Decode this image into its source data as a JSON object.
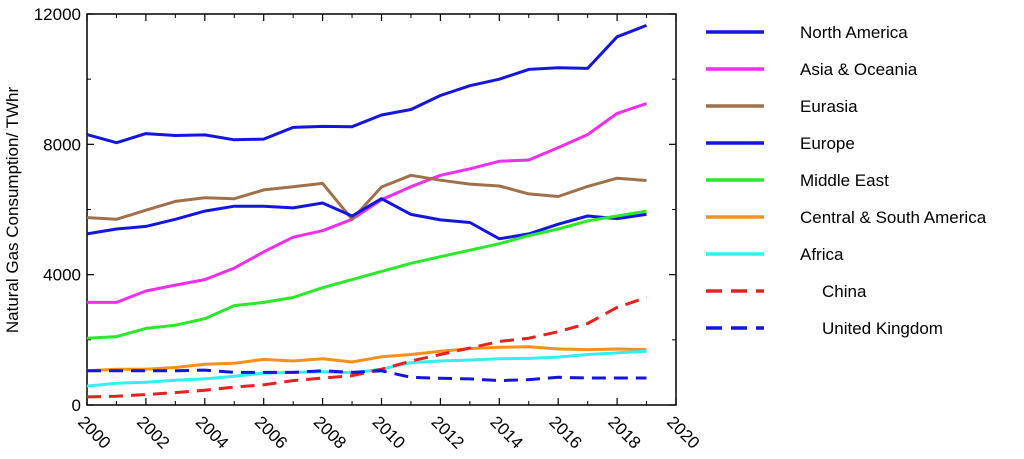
{
  "chart_data": {
    "type": "line",
    "title": "",
    "xlabel": "",
    "ylabel": "Natural Gas Consumption/ TWhr",
    "xlim": [
      2000,
      2020
    ],
    "ylim": [
      0,
      12000
    ],
    "x_ticks": [
      "2000",
      "2002",
      "2004",
      "2006",
      "2008",
      "2010",
      "2012",
      "2014",
      "2016",
      "2018",
      "2020"
    ],
    "y_ticks": [
      "0",
      "4000",
      "8000",
      "12000"
    ],
    "grid": false,
    "legend_position": "right",
    "x": [
      2000,
      2001,
      2002,
      2003,
      2004,
      2005,
      2006,
      2007,
      2008,
      2009,
      2010,
      2011,
      2012,
      2013,
      2014,
      2015,
      2016,
      2017,
      2018,
      2019
    ],
    "series": [
      {
        "name": "North America",
        "color": "#1515e0",
        "dash": "solid",
        "values": [
          8300,
          8050,
          8330,
          8270,
          8290,
          8140,
          8160,
          8520,
          8550,
          8540,
          8900,
          9070,
          9500,
          9800,
          10000,
          10300,
          10350,
          10330,
          11300,
          11650
        ]
      },
      {
        "name": "Asia & Oceania",
        "color": "#ef2ef0",
        "dash": "solid",
        "values": [
          3150,
          3150,
          3500,
          3680,
          3850,
          4200,
          4700,
          5150,
          5350,
          5700,
          6300,
          6700,
          7050,
          7250,
          7480,
          7520,
          7900,
          8300,
          8950,
          9250
        ]
      },
      {
        "name": "Eurasia",
        "color": "#a0704a",
        "dash": "solid",
        "values": [
          5750,
          5700,
          5980,
          6250,
          6360,
          6330,
          6600,
          6700,
          6800,
          5700,
          6690,
          7050,
          6900,
          6780,
          6720,
          6480,
          6400,
          6710,
          6960,
          6890
        ]
      },
      {
        "name": "Europe",
        "color": "#1515e0",
        "dash": "solid",
        "values": [
          5250,
          5400,
          5480,
          5700,
          5950,
          6100,
          6100,
          6050,
          6200,
          5800,
          6330,
          5850,
          5680,
          5600,
          5100,
          5250,
          5550,
          5800,
          5720,
          5850
        ]
      },
      {
        "name": "Middle East",
        "color": "#2ae82a",
        "dash": "solid",
        "values": [
          2050,
          2100,
          2350,
          2450,
          2650,
          3050,
          3150,
          3300,
          3600,
          3850,
          4100,
          4350,
          4550,
          4750,
          4950,
          5200,
          5400,
          5650,
          5800,
          5950
        ]
      },
      {
        "name": "Central & South America",
        "color": "#f5901e",
        "dash": "solid",
        "values": [
          1050,
          1100,
          1100,
          1150,
          1250,
          1280,
          1400,
          1350,
          1420,
          1320,
          1480,
          1550,
          1650,
          1730,
          1770,
          1790,
          1720,
          1700,
          1720,
          1700
        ]
      },
      {
        "name": "Africa",
        "color": "#30f0f0",
        "dash": "solid",
        "values": [
          580,
          670,
          700,
          760,
          800,
          880,
          980,
          1000,
          1020,
          990,
          1100,
          1300,
          1350,
          1380,
          1420,
          1430,
          1470,
          1550,
          1600,
          1650
        ]
      },
      {
        "name": "China",
        "color": "#e82020",
        "dash": "dashed",
        "values": [
          250,
          270,
          320,
          380,
          450,
          550,
          620,
          750,
          830,
          900,
          1100,
          1350,
          1550,
          1750,
          1950,
          2050,
          2250,
          2500,
          3000,
          3300
        ]
      },
      {
        "name": "United Kingdom",
        "color": "#1515e0",
        "dash": "dashed",
        "values": [
          1050,
          1050,
          1050,
          1050,
          1070,
          1000,
          1000,
          1000,
          1050,
          1000,
          1050,
          850,
          820,
          800,
          750,
          780,
          850,
          830,
          830,
          830
        ]
      }
    ]
  }
}
